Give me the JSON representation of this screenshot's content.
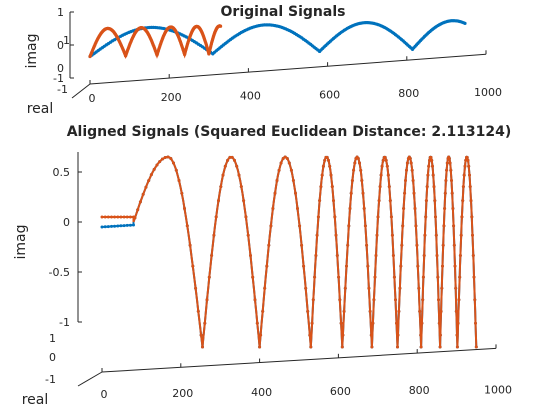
{
  "chart_data": [
    {
      "type": "line",
      "projection": "3d",
      "title": "Original Signals",
      "xlabel": "",
      "ylabel": "real",
      "zlabel": "imag",
      "xlim": [
        0,
        1000
      ],
      "xticks": [
        "0",
        "200",
        "400",
        "600",
        "800",
        "1000"
      ],
      "ylim": [
        -1,
        1
      ],
      "yticks": [
        "1",
        "0",
        "-1"
      ],
      "zlim": [
        -1,
        1
      ],
      "zticks": [
        "1",
        "0",
        "-1"
      ],
      "grid": false,
      "series": [
        {
          "color": "#0072BD",
          "marker": "dot",
          "x_range": [
            0,
            950
          ],
          "start_period": 310,
          "period_decay": 0.87,
          "amplitude": 0.7
        },
        {
          "color": "#D95319",
          "marker": "dot",
          "x_range": [
            0,
            330
          ],
          "start_period": 90,
          "period_decay": 0.88,
          "amplitude": 0.7
        }
      ]
    },
    {
      "type": "line",
      "projection": "3d",
      "title": "Aligned Signals (Squared Euclidean Distance: 2.113124)",
      "xlabel": "",
      "ylabel": "real",
      "zlabel": "imag",
      "xlim": [
        0,
        1000
      ],
      "xticks": [
        "0",
        "200",
        "400",
        "600",
        "800",
        "1000"
      ],
      "ylim": [
        -1,
        1
      ],
      "yticks": [
        "1",
        "0",
        "-1"
      ],
      "zlim": [
        -1,
        0.7
      ],
      "zticks": [
        "0.5",
        "0",
        "-0.5",
        "-1"
      ],
      "grid": false,
      "lobes": [
        {
          "x_start": 80,
          "x_end": 255
        },
        {
          "x_start": 255,
          "x_end": 400
        },
        {
          "x_start": 400,
          "x_end": 530
        },
        {
          "x_start": 530,
          "x_end": 610
        },
        {
          "x_start": 610,
          "x_end": 685
        },
        {
          "x_start": 685,
          "x_end": 750
        },
        {
          "x_start": 750,
          "x_end": 810
        },
        {
          "x_start": 810,
          "x_end": 858
        },
        {
          "x_start": 858,
          "x_end": 902
        },
        {
          "x_start": 902,
          "x_end": 950
        }
      ],
      "series": [
        {
          "color": "#0072BD",
          "marker": "dot",
          "x_range": [
            0,
            950
          ],
          "rise_from": -0.05
        },
        {
          "color": "#D95319",
          "marker": "dot",
          "x_range": [
            0,
            950
          ],
          "flat_segment": {
            "x_range": [
              0,
              80
            ],
            "z": 0.05
          }
        }
      ]
    }
  ]
}
